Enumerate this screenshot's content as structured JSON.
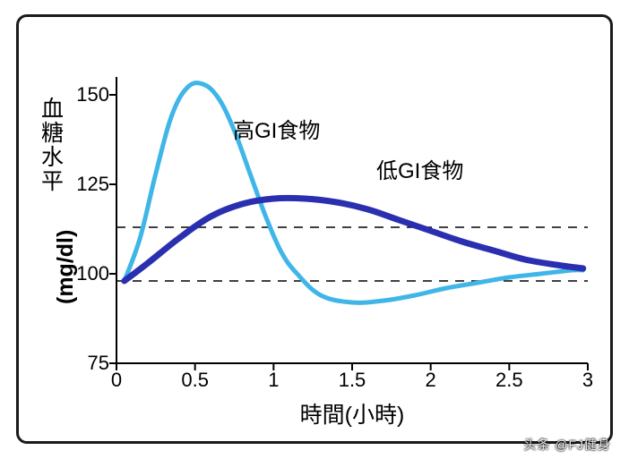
{
  "chart": {
    "type": "line",
    "background_color": "#ffffff",
    "frame_border_color": "#1a1a1a",
    "frame_border_width": 3,
    "frame_border_radius": 12,
    "xlabel": "時間(小時)",
    "ylabel_cjk": "血糖水平",
    "ylabel_latin": "(mg/dl)",
    "label_fontsize": 25,
    "tick_fontsize": 22,
    "xlim": [
      0,
      3
    ],
    "ylim": [
      75,
      155
    ],
    "xticks": [
      0,
      0.5,
      1,
      1.5,
      2,
      2.5,
      3
    ],
    "yticks": [
      75,
      100,
      125,
      150
    ],
    "axis_color": "#000000",
    "axis_width": 2,
    "dash_lines_y": [
      98,
      113
    ],
    "dash_color": "#000000",
    "dash_pattern": "10 8",
    "series": {
      "high_gi": {
        "label": "高GI食物",
        "label_pos_svg": [
          130,
          40
        ],
        "color": "#3fb5e8",
        "stroke_width": 5,
        "points": [
          [
            0.05,
            98
          ],
          [
            0.15,
            110
          ],
          [
            0.25,
            128
          ],
          [
            0.35,
            144
          ],
          [
            0.45,
            152
          ],
          [
            0.55,
            153
          ],
          [
            0.65,
            149
          ],
          [
            0.75,
            140
          ],
          [
            0.85,
            128
          ],
          [
            0.95,
            116
          ],
          [
            1.05,
            106
          ],
          [
            1.15,
            100
          ],
          [
            1.3,
            94
          ],
          [
            1.5,
            92
          ],
          [
            1.7,
            92.5
          ],
          [
            1.9,
            94
          ],
          [
            2.1,
            96
          ],
          [
            2.3,
            97.5
          ],
          [
            2.5,
            99
          ],
          [
            2.7,
            100
          ],
          [
            2.9,
            101
          ],
          [
            2.97,
            101
          ]
        ]
      },
      "low_gi": {
        "label": "低GI食物",
        "label_pos_svg": [
          290,
          85
        ],
        "color": "#2a2fb0",
        "stroke_width": 7,
        "points": [
          [
            0.05,
            98
          ],
          [
            0.2,
            103
          ],
          [
            0.4,
            110
          ],
          [
            0.6,
            116
          ],
          [
            0.8,
            119.5
          ],
          [
            1.0,
            121
          ],
          [
            1.2,
            121
          ],
          [
            1.4,
            120
          ],
          [
            1.6,
            118
          ],
          [
            1.8,
            115
          ],
          [
            2.0,
            112
          ],
          [
            2.2,
            109
          ],
          [
            2.4,
            106.5
          ],
          [
            2.6,
            104
          ],
          [
            2.8,
            102.5
          ],
          [
            2.97,
            101.5
          ]
        ]
      }
    }
  },
  "watermark": "头条 @FJ健身"
}
